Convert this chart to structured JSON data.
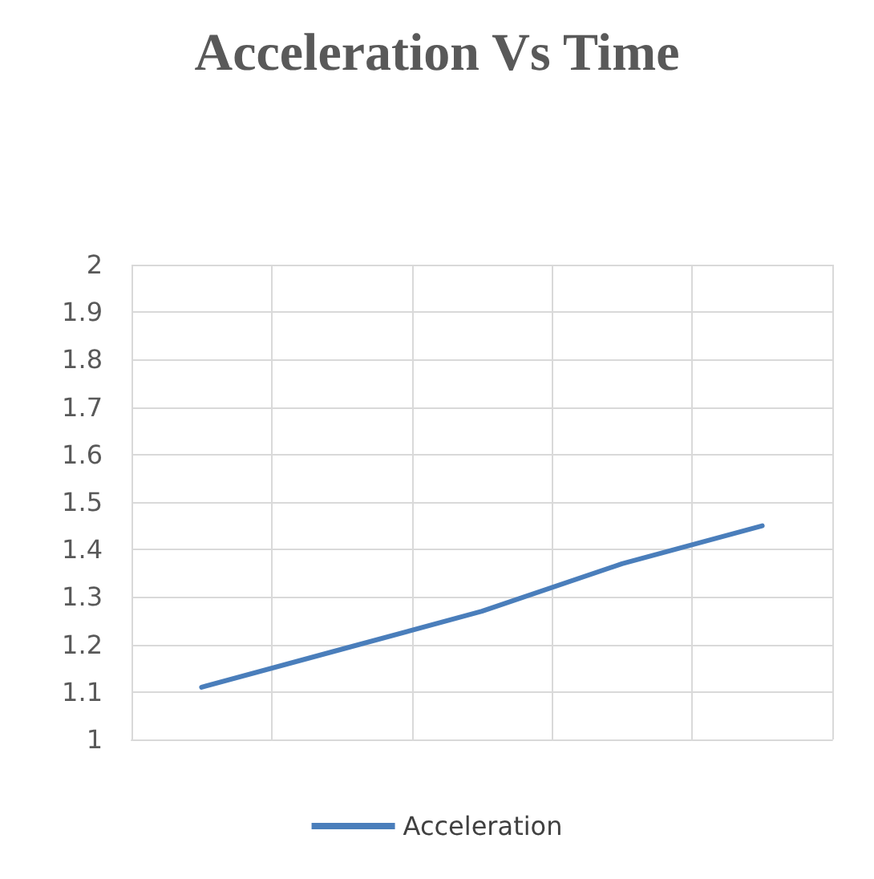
{
  "chart_data": {
    "type": "line",
    "title": "Acceleration Vs Time",
    "categories": [
      null,
      null,
      null,
      null,
      null
    ],
    "series": [
      {
        "name": "Acceleration",
        "color": "#4a7ebb",
        "values": [
          1.11,
          1.19,
          1.27,
          1.37,
          1.45
        ]
      }
    ],
    "ylim": [
      1,
      2
    ],
    "yticks": [
      1,
      1.1,
      1.2,
      1.3,
      1.4,
      1.5,
      1.6,
      1.7,
      1.8,
      1.9,
      2
    ],
    "grid": true,
    "legend": "bottom",
    "marker": "none",
    "line_style": "solid"
  }
}
